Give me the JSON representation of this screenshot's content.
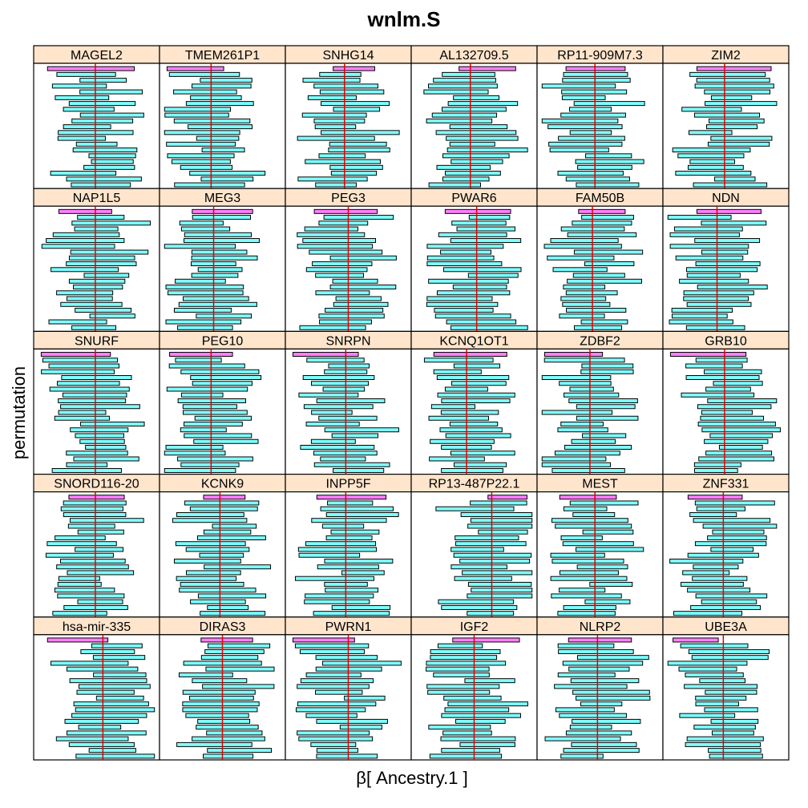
{
  "chart_data": {
    "type": "bar",
    "title": "wnlm.S",
    "xlabel": "β[ Ancestry.1 ]",
    "ylabel": "permutation",
    "layout": {
      "columns": 6,
      "rows": 5
    },
    "n_permutations": 21,
    "observed_color": "#ff80ff",
    "permutation_color": "#80ffff",
    "reference_line_color": "#e00000",
    "panels": [
      {
        "name": "MAGEL2",
        "ref": 0.49,
        "observed": [
          0.11,
          0.8
        ]
      },
      {
        "name": "TMEM261P1",
        "ref": 0.41,
        "observed": [
          0.06,
          0.51
        ]
      },
      {
        "name": "SNHG14",
        "ref": 0.47,
        "observed": [
          0.38,
          0.71
        ]
      },
      {
        "name": "AL132709.5",
        "ref": 0.47,
        "observed": [
          0.38,
          0.83
        ]
      },
      {
        "name": "RP11-909M7.3",
        "ref": 0.46,
        "observed": [
          0.23,
          0.7
        ]
      },
      {
        "name": "ZIM2",
        "ref": 0.49,
        "observed": [
          0.27,
          0.86
        ]
      },
      {
        "name": "NAP1L5",
        "ref": 0.49,
        "observed": [
          0.2,
          0.62
        ]
      },
      {
        "name": "MEG3",
        "ref": 0.43,
        "observed": [
          0.26,
          0.74
        ]
      },
      {
        "name": "PEG3",
        "ref": 0.5,
        "observed": [
          0.23,
          0.73
        ]
      },
      {
        "name": "PWAR6",
        "ref": 0.52,
        "observed": [
          0.27,
          0.79
        ]
      },
      {
        "name": "FAM50B",
        "ref": 0.44,
        "observed": [
          0.33,
          0.7
        ]
      },
      {
        "name": "NDN",
        "ref": 0.43,
        "observed": [
          0.27,
          0.78
        ]
      },
      {
        "name": "SNURF",
        "ref": 0.49,
        "observed": [
          0.06,
          0.61
        ]
      },
      {
        "name": "PEG10",
        "ref": 0.41,
        "observed": [
          0.08,
          0.58
        ]
      },
      {
        "name": "SNRPN",
        "ref": 0.48,
        "observed": [
          0.06,
          0.58
        ]
      },
      {
        "name": "KCNQ1OT1",
        "ref": 0.44,
        "observed": [
          0.18,
          0.76
        ]
      },
      {
        "name": "ZDBF2",
        "ref": 0.42,
        "observed": [
          0.06,
          0.52
        ]
      },
      {
        "name": "GRB10",
        "ref": 0.49,
        "observed": [
          0.06,
          0.66
        ]
      },
      {
        "name": "SNORD116-20",
        "ref": 0.49,
        "observed": [
          0.28,
          0.72
        ]
      },
      {
        "name": "KCNK9",
        "ref": 0.48,
        "observed": [
          0.35,
          0.68
        ]
      },
      {
        "name": "INPP5F",
        "ref": 0.48,
        "observed": [
          0.25,
          0.8
        ]
      },
      {
        "name": "RP13-487P22.1",
        "ref": 0.64,
        "observed": [
          0.61,
          0.92
        ]
      },
      {
        "name": "MEST",
        "ref": 0.46,
        "observed": [
          0.18,
          0.63
        ]
      },
      {
        "name": "ZNF331",
        "ref": 0.48,
        "observed": [
          0.2,
          0.63
        ]
      },
      {
        "name": "hsa-mir-335",
        "ref": 0.55,
        "observed": [
          0.11,
          0.59
        ]
      },
      {
        "name": "DIRAS3",
        "ref": 0.5,
        "observed": [
          0.33,
          0.74
        ]
      },
      {
        "name": "PWRN1",
        "ref": 0.5,
        "observed": [
          0.06,
          0.55
        ]
      },
      {
        "name": "IGF2",
        "ref": 0.5,
        "observed": [
          0.33,
          0.86
        ]
      },
      {
        "name": "NLRP2",
        "ref": 0.48,
        "observed": [
          0.25,
          0.75
        ]
      },
      {
        "name": "UBE3A",
        "ref": 0.48,
        "observed": [
          0.08,
          0.44
        ]
      }
    ]
  }
}
